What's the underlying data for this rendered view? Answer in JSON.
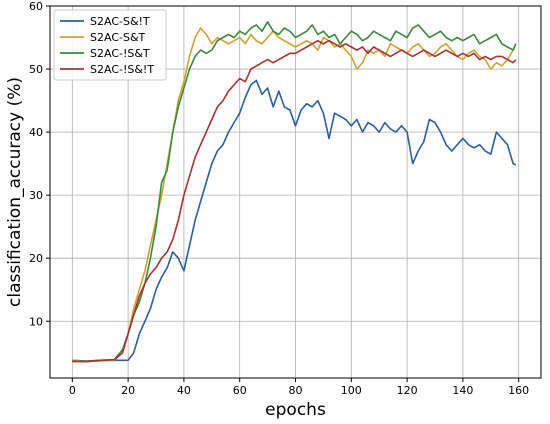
{
  "chart_data": {
    "type": "line",
    "title": "",
    "xlabel": "epochs",
    "ylabel": "classification_accuracy (%)",
    "xlim": [
      -8,
      168
    ],
    "ylim": [
      1,
      60
    ],
    "xticks": [
      0,
      20,
      40,
      60,
      80,
      100,
      120,
      140,
      160
    ],
    "yticks": [
      10,
      20,
      30,
      40,
      50,
      60
    ],
    "grid": true,
    "legend_position": "top-left",
    "series": [
      {
        "name": "S2AC-S&!T",
        "color": "#2c5f9e",
        "x": [
          0,
          5,
          10,
          15,
          20,
          22,
          24,
          26,
          28,
          30,
          32,
          34,
          36,
          38,
          40,
          42,
          44,
          46,
          48,
          50,
          52,
          54,
          56,
          58,
          60,
          62,
          64,
          66,
          68,
          70,
          72,
          74,
          76,
          78,
          80,
          82,
          84,
          86,
          88,
          90,
          92,
          94,
          96,
          98,
          100,
          102,
          104,
          106,
          108,
          110,
          112,
          114,
          116,
          118,
          120,
          122,
          124,
          126,
          128,
          130,
          132,
          134,
          136,
          138,
          140,
          142,
          144,
          146,
          148,
          150,
          152,
          154,
          156,
          158,
          159
        ],
        "y": [
          3.8,
          3.7,
          3.8,
          3.8,
          3.8,
          5.0,
          8.0,
          10.0,
          12.0,
          15.0,
          17.0,
          18.5,
          21.0,
          20.0,
          18.0,
          22.0,
          26.0,
          29.0,
          32.0,
          35.0,
          37.0,
          38.0,
          40.0,
          41.5,
          43.0,
          45.5,
          47.5,
          48.2,
          46.0,
          47.0,
          44.0,
          46.5,
          44.0,
          43.5,
          41.0,
          43.5,
          44.5,
          44.0,
          45.0,
          43.0,
          39.0,
          43.0,
          42.5,
          42.0,
          41.0,
          42.0,
          40.0,
          41.5,
          41.0,
          40.0,
          41.5,
          40.5,
          40.0,
          41.0,
          40.0,
          35.0,
          37.0,
          38.5,
          42.0,
          41.5,
          40.0,
          38.0,
          37.0,
          38.0,
          39.0,
          38.0,
          37.5,
          38.0,
          37.0,
          36.5,
          40.0,
          39.0,
          38.0,
          35.0,
          34.8
        ]
      },
      {
        "name": "S2AC-S&T",
        "color": "#d4a032",
        "x": [
          0,
          5,
          10,
          15,
          18,
          20,
          22,
          24,
          26,
          28,
          30,
          32,
          34,
          36,
          38,
          40,
          42,
          44,
          46,
          48,
          50,
          52,
          54,
          56,
          58,
          60,
          62,
          64,
          66,
          68,
          70,
          72,
          74,
          76,
          78,
          80,
          82,
          84,
          86,
          88,
          90,
          92,
          94,
          96,
          98,
          100,
          102,
          104,
          106,
          108,
          110,
          112,
          114,
          116,
          118,
          120,
          122,
          124,
          126,
          128,
          130,
          132,
          134,
          136,
          138,
          140,
          142,
          144,
          146,
          148,
          150,
          152,
          154,
          156,
          158,
          159
        ],
        "y": [
          3.8,
          3.6,
          3.7,
          3.8,
          5.0,
          8.0,
          12.0,
          15.0,
          18.0,
          22.0,
          26.0,
          30.0,
          35.0,
          40.0,
          45.0,
          48.0,
          52.0,
          55.0,
          56.5,
          55.5,
          54.0,
          55.0,
          54.5,
          54.0,
          54.5,
          55.0,
          54.0,
          55.5,
          54.5,
          54.0,
          55.0,
          56.0,
          55.0,
          54.5,
          54.0,
          53.5,
          54.0,
          54.5,
          54.0,
          53.0,
          55.0,
          54.5,
          53.5,
          54.0,
          53.0,
          52.0,
          50.0,
          51.0,
          53.0,
          52.5,
          53.0,
          52.0,
          54.0,
          53.5,
          53.0,
          52.5,
          53.5,
          54.0,
          53.0,
          52.0,
          52.5,
          53.5,
          54.0,
          53.0,
          52.0,
          51.5,
          52.5,
          53.0,
          52.0,
          51.5,
          50.0,
          51.0,
          50.5,
          51.5,
          53.0,
          54.0
        ]
      },
      {
        "name": "S2AC-!S&T",
        "color": "#3a8a3a",
        "x": [
          0,
          5,
          10,
          15,
          18,
          20,
          22,
          24,
          26,
          28,
          30,
          32,
          34,
          36,
          38,
          40,
          42,
          44,
          46,
          48,
          50,
          52,
          54,
          56,
          58,
          60,
          62,
          64,
          66,
          68,
          70,
          72,
          74,
          76,
          78,
          80,
          82,
          84,
          86,
          88,
          90,
          92,
          94,
          96,
          98,
          100,
          102,
          104,
          106,
          108,
          110,
          112,
          114,
          116,
          118,
          120,
          122,
          124,
          126,
          128,
          130,
          132,
          134,
          136,
          138,
          140,
          142,
          144,
          146,
          148,
          150,
          152,
          154,
          156,
          158,
          159
        ],
        "y": [
          3.7,
          3.6,
          3.8,
          3.9,
          5.5,
          8.0,
          11.0,
          13.0,
          16.0,
          20.0,
          25.0,
          32.0,
          34.0,
          40.0,
          44.0,
          47.0,
          50.0,
          52.0,
          53.0,
          52.5,
          53.0,
          54.5,
          55.0,
          55.5,
          55.0,
          56.0,
          55.5,
          56.5,
          57.0,
          56.0,
          57.5,
          56.0,
          55.5,
          56.5,
          56.0,
          55.0,
          55.5,
          56.0,
          57.0,
          55.5,
          56.0,
          55.0,
          55.5,
          54.0,
          55.0,
          56.0,
          55.5,
          54.5,
          55.0,
          56.0,
          55.5,
          55.0,
          54.5,
          56.0,
          55.5,
          55.0,
          56.5,
          57.0,
          56.0,
          55.0,
          55.5,
          56.0,
          55.0,
          54.5,
          55.0,
          54.5,
          55.0,
          55.5,
          54.0,
          54.5,
          55.0,
          55.5,
          54.0,
          53.5,
          53.0,
          54.0
        ]
      },
      {
        "name": "S2AC-!S&!T",
        "color": "#a83232",
        "x": [
          0,
          5,
          10,
          15,
          18,
          20,
          22,
          24,
          26,
          28,
          30,
          32,
          34,
          36,
          38,
          40,
          42,
          44,
          46,
          48,
          50,
          52,
          54,
          56,
          58,
          60,
          62,
          64,
          66,
          68,
          70,
          72,
          74,
          76,
          78,
          80,
          82,
          84,
          86,
          88,
          90,
          92,
          94,
          96,
          98,
          100,
          102,
          104,
          106,
          108,
          110,
          112,
          114,
          116,
          118,
          120,
          122,
          124,
          126,
          128,
          130,
          132,
          134,
          136,
          138,
          140,
          142,
          144,
          146,
          148,
          150,
          152,
          154,
          156,
          158,
          159
        ],
        "y": [
          3.6,
          3.6,
          3.8,
          3.9,
          5.0,
          8.0,
          11.0,
          14.0,
          16.0,
          17.5,
          18.5,
          20.0,
          21.0,
          23.0,
          26.0,
          30.0,
          33.0,
          36.0,
          38.0,
          40.0,
          42.0,
          44.0,
          45.0,
          46.5,
          47.5,
          48.5,
          48.0,
          50.0,
          50.5,
          51.0,
          51.5,
          51.0,
          51.5,
          52.0,
          52.5,
          52.5,
          53.0,
          53.5,
          54.0,
          54.5,
          54.0,
          54.5,
          54.0,
          53.5,
          54.0,
          53.5,
          53.0,
          53.5,
          52.5,
          53.5,
          53.0,
          52.5,
          52.0,
          52.5,
          53.0,
          52.5,
          52.0,
          52.5,
          53.0,
          52.5,
          52.0,
          52.5,
          53.0,
          52.5,
          52.0,
          52.5,
          52.0,
          52.5,
          51.5,
          52.0,
          51.5,
          52.0,
          52.0,
          51.5,
          51.0,
          51.5
        ]
      }
    ]
  }
}
